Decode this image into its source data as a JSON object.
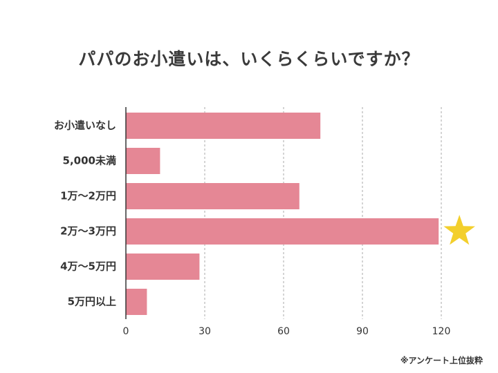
{
  "chart_data": {
    "type": "bar",
    "orientation": "horizontal",
    "title": "パパのお小遣いは、いくらくらいですか？",
    "categories": [
      "お小遣いなし",
      "5,000未満",
      "1万〜2万円",
      "2万〜3万円",
      "4万〜5万円",
      "5万円以上"
    ],
    "values": [
      74,
      13,
      66,
      119,
      28,
      8
    ],
    "xlim": [
      0,
      130
    ],
    "xticks": [
      0,
      30,
      60,
      90,
      120
    ],
    "xtick_labels": [
      "0",
      "30",
      "60",
      "90",
      "120"
    ],
    "xlabel": "",
    "ylabel": "",
    "grid": "vertical dashed",
    "legend": "none",
    "highlight_category": "2万〜3万円",
    "highlight_marker": "star",
    "colors": {
      "bar": "#e58795",
      "star": "#f3cf2c",
      "grid": "#aaaaaa",
      "axis": "#333333"
    }
  },
  "footnote": "※アンケート上位抜粋"
}
